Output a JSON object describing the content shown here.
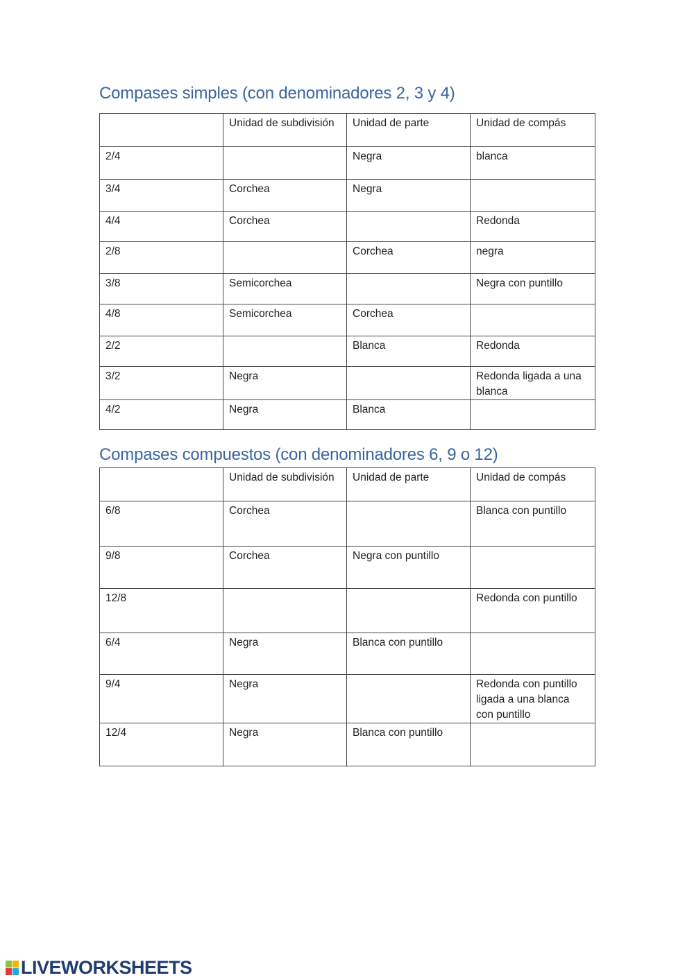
{
  "simple": {
    "title": "Compases simples (con denominadores 2, 3 y 4)",
    "headers": [
      "",
      "Unidad de subdivisión",
      "Unidad de parte",
      "Unidad de compás"
    ],
    "rows": [
      [
        "2/4",
        "",
        "Negra",
        "blanca"
      ],
      [
        "3/4",
        "Corchea",
        "Negra",
        ""
      ],
      [
        "4/4",
        "Corchea",
        "",
        "Redonda"
      ],
      [
        "2/8",
        "",
        "Corchea",
        "negra"
      ],
      [
        "3/8",
        "Semicorchea",
        "",
        "Negra con puntillo"
      ],
      [
        "4/8",
        "Semicorchea",
        "Corchea",
        ""
      ],
      [
        "2/2",
        "",
        "Blanca",
        "Redonda"
      ],
      [
        "3/2",
        "Negra",
        "",
        "Redonda ligada a una blanca"
      ],
      [
        "4/2",
        "Negra",
        "Blanca",
        ""
      ]
    ]
  },
  "compound": {
    "title": "Compases compuestos (con denominadores 6, 9 o 12)",
    "headers": [
      "",
      "Unidad de subdivisión",
      "Unidad de parte",
      "Unidad de compás"
    ],
    "rows": [
      [
        "6/8",
        "Corchea",
        "",
        "Blanca con puntillo"
      ],
      [
        "9/8",
        "Corchea",
        "Negra con puntillo",
        ""
      ],
      [
        "12/8",
        "",
        "",
        "Redonda con puntillo"
      ],
      [
        "6/4",
        "Negra",
        "Blanca con puntillo",
        ""
      ],
      [
        "9/4",
        "Negra",
        "",
        "Redonda con puntillo ligada a una blanca con puntillo"
      ],
      [
        "12/4",
        "Negra",
        "Blanca con puntillo",
        ""
      ]
    ]
  },
  "footer": {
    "logo_text": "LIVEWORKSHEETS",
    "logo_letters": [
      "L",
      "I",
      "V",
      "E"
    ]
  }
}
